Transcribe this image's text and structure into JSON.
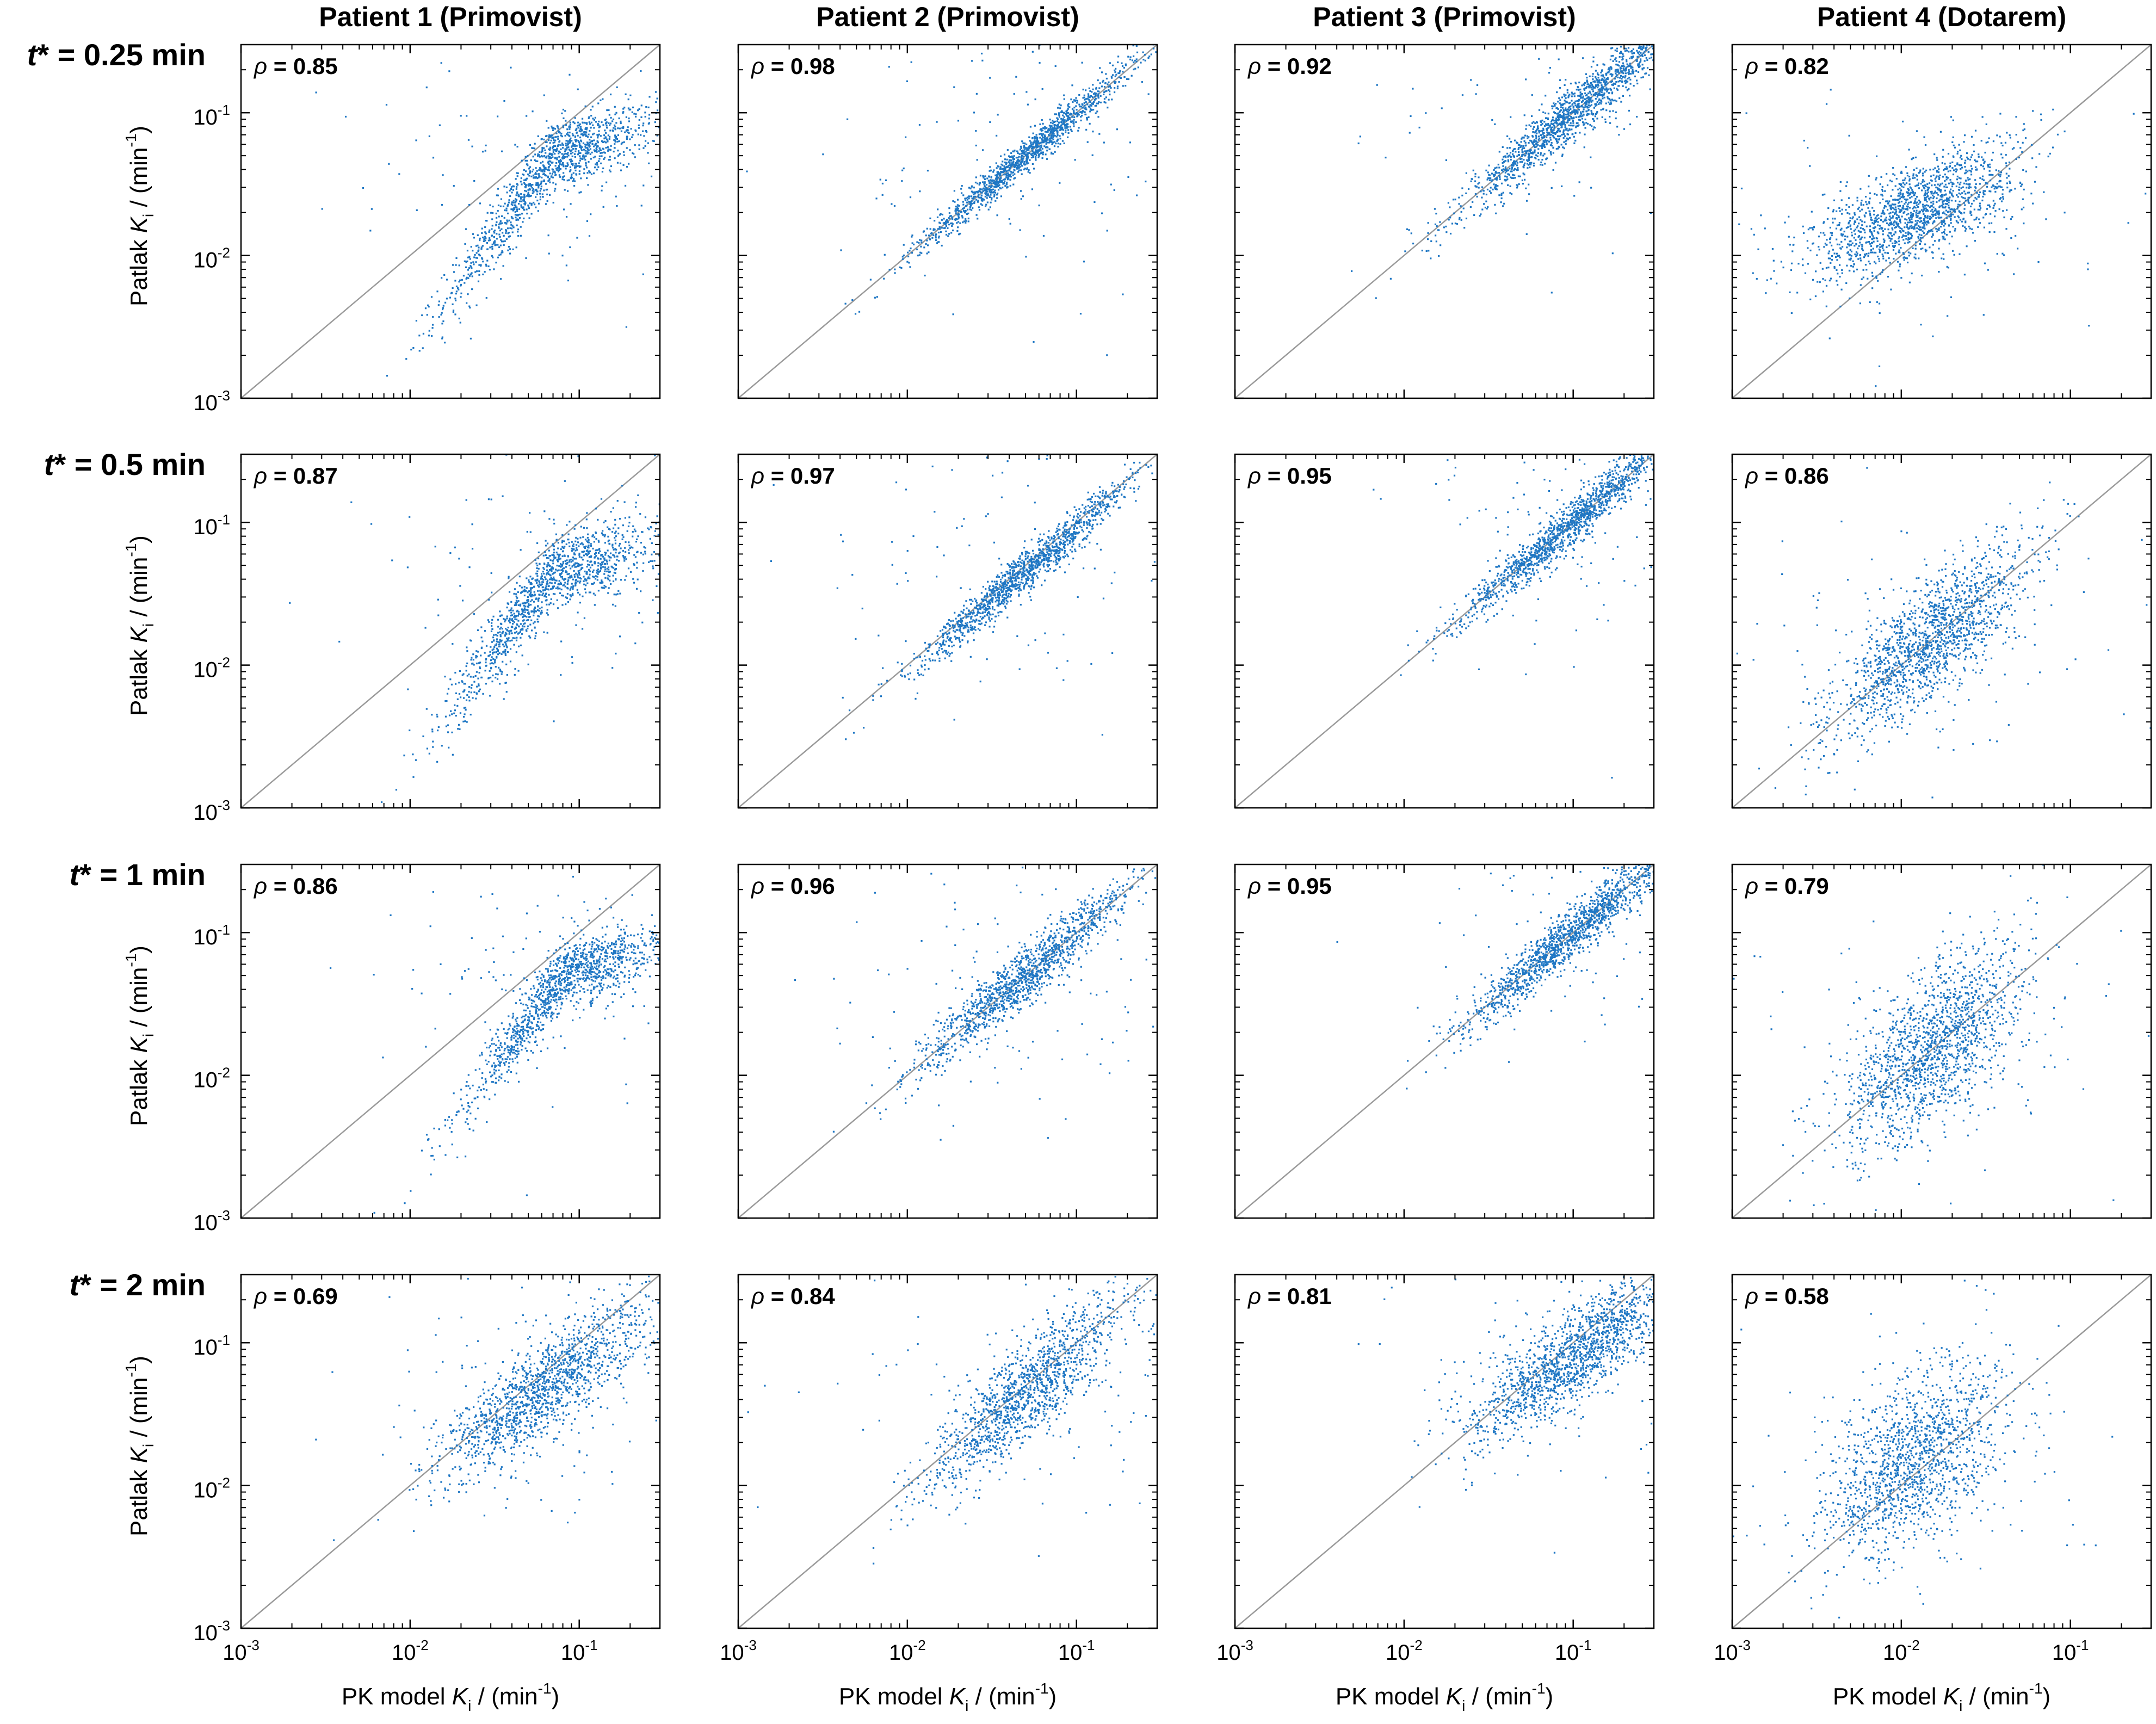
{
  "figure": {
    "column_titles": [
      "Patient 1 (Primovist)",
      "Patient 2 (Primovist)",
      "Patient 3 (Primovist)",
      "Patient 4 (Dotarem)"
    ],
    "row_labels": [
      {
        "var": "t",
        "text": "* = 0.25 min"
      },
      {
        "var": "t",
        "text": "* = 0.5 min"
      },
      {
        "var": "t",
        "text": "* = 1 min"
      },
      {
        "var": "t",
        "text": "* = 2 min"
      }
    ]
  },
  "chart_data": {
    "type": "scatter",
    "x_scale": "log",
    "y_scale": "log",
    "xlim": [
      0.001,
      0.3
    ],
    "ylim": [
      0.001,
      0.3
    ],
    "xlabel": {
      "prefix": "PK model ",
      "var": "K",
      "sub": "i",
      "suffix": " / (min",
      "sup": "-1",
      "end": ")"
    },
    "ylabel": {
      "prefix": "Patlak ",
      "var": "K",
      "sub": "i",
      "suffix": " / (min",
      "sup": "-1",
      "end": ")"
    },
    "x_ticks": [
      {
        "base": "10",
        "exp": "-3"
      },
      {
        "base": "10",
        "exp": "-2"
      },
      {
        "base": "10",
        "exp": "-1"
      }
    ],
    "y_ticks": [
      {
        "base": "10",
        "exp": "-3"
      },
      {
        "base": "10",
        "exp": "-2"
      },
      {
        "base": "10",
        "exp": "-1"
      }
    ],
    "reference_line": "identity (y = x)",
    "point_color": "#1f77c4",
    "line_color": "#9a9a9a",
    "rho_symbol": "ρ",
    "panels": [
      {
        "row": 0,
        "col": 0,
        "rho": "0.85",
        "center_x": 0.07,
        "center_y": 0.05,
        "slope": 0.55,
        "spread": 0.12,
        "shape": "saturate",
        "n": 1400
      },
      {
        "row": 0,
        "col": 1,
        "rho": "0.98",
        "center_x": 0.05,
        "center_y": 0.05,
        "slope": 1.0,
        "spread": 0.06,
        "shape": "linear",
        "n": 1400
      },
      {
        "row": 0,
        "col": 2,
        "rho": "0.92",
        "center_x": 0.1,
        "center_y": 0.1,
        "slope": 1.0,
        "spread": 0.09,
        "shape": "linear",
        "n": 1600
      },
      {
        "row": 0,
        "col": 3,
        "rho": "0.82",
        "center_x": 0.012,
        "center_y": 0.02,
        "slope": 0.5,
        "spread": 0.17,
        "shape": "linear",
        "n": 1600
      },
      {
        "row": 1,
        "col": 0,
        "rho": "0.87",
        "center_x": 0.07,
        "center_y": 0.045,
        "slope": 0.6,
        "spread": 0.13,
        "shape": "saturate",
        "n": 1400
      },
      {
        "row": 1,
        "col": 1,
        "rho": "0.97",
        "center_x": 0.05,
        "center_y": 0.045,
        "slope": 1.0,
        "spread": 0.07,
        "shape": "linear",
        "n": 1400
      },
      {
        "row": 1,
        "col": 2,
        "rho": "0.95",
        "center_x": 0.1,
        "center_y": 0.1,
        "slope": 1.0,
        "spread": 0.08,
        "shape": "linear",
        "n": 1500
      },
      {
        "row": 1,
        "col": 3,
        "rho": "0.86",
        "center_x": 0.015,
        "center_y": 0.015,
        "slope": 0.9,
        "spread": 0.2,
        "shape": "linear",
        "n": 1600
      },
      {
        "row": 2,
        "col": 0,
        "rho": "0.86",
        "center_x": 0.08,
        "center_y": 0.05,
        "slope": 0.6,
        "spread": 0.12,
        "shape": "saturate",
        "n": 1400
      },
      {
        "row": 2,
        "col": 1,
        "rho": "0.96",
        "center_x": 0.05,
        "center_y": 0.05,
        "slope": 1.0,
        "spread": 0.1,
        "shape": "linear",
        "n": 1400
      },
      {
        "row": 2,
        "col": 2,
        "rho": "0.95",
        "center_x": 0.1,
        "center_y": 0.1,
        "slope": 1.0,
        "spread": 0.09,
        "shape": "linear",
        "n": 1500
      },
      {
        "row": 2,
        "col": 3,
        "rho": "0.79",
        "center_x": 0.015,
        "center_y": 0.015,
        "slope": 0.9,
        "spread": 0.28,
        "shape": "linear",
        "n": 1600
      },
      {
        "row": 3,
        "col": 0,
        "rho": "0.69",
        "center_x": 0.06,
        "center_y": 0.045,
        "slope": 0.8,
        "spread": 0.17,
        "shape": "linear",
        "n": 1500
      },
      {
        "row": 3,
        "col": 1,
        "rho": "0.84",
        "center_x": 0.05,
        "center_y": 0.045,
        "slope": 1.0,
        "spread": 0.17,
        "shape": "linear",
        "n": 1400
      },
      {
        "row": 3,
        "col": 2,
        "rho": "0.81",
        "center_x": 0.1,
        "center_y": 0.08,
        "slope": 0.8,
        "spread": 0.16,
        "shape": "linear",
        "n": 1600
      },
      {
        "row": 3,
        "col": 3,
        "rho": "0.58",
        "center_x": 0.012,
        "center_y": 0.015,
        "slope": 0.7,
        "spread": 0.3,
        "shape": "linear",
        "n": 1500
      }
    ]
  }
}
